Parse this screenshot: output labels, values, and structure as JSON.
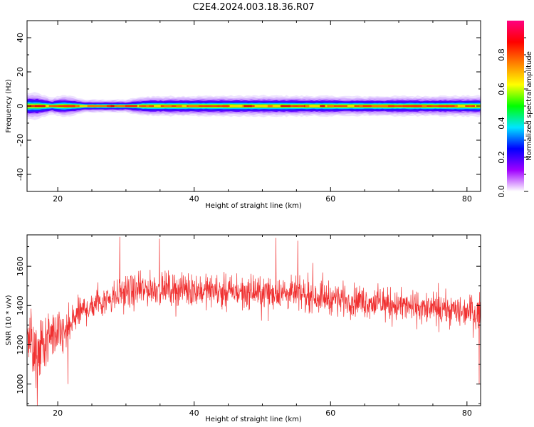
{
  "title": "C2E4.2024.003.18.36.R07",
  "chart_data": [
    {
      "type": "heatmap",
      "name": "spectrogram",
      "xlabel": "Height of straight line (km)",
      "ylabel": "Frequency (Hz)",
      "xlim": [
        15.5,
        82
      ],
      "ylim": [
        -50,
        50
      ],
      "x_ticks": [
        20,
        40,
        60,
        80
      ],
      "y_ticks": [
        -40,
        -20,
        0,
        20,
        40
      ],
      "band": {
        "center_hz": 0,
        "half_width_hz": [
          {
            "x": 15.5,
            "hz": 4.0
          },
          {
            "x": 17,
            "hz": 4.0
          },
          {
            "x": 19,
            "hz": 2.5
          },
          {
            "x": 21,
            "hz": 3.5
          },
          {
            "x": 24,
            "hz": 2.0
          },
          {
            "x": 30,
            "hz": 2.0
          },
          {
            "x": 33,
            "hz": 3.0
          },
          {
            "x": 50,
            "hz": 3.2
          },
          {
            "x": 65,
            "hz": 3.0
          },
          {
            "x": 82,
            "hz": 3.2
          }
        ]
      },
      "colorbar": {
        "label": "Normalized spectral amplitude",
        "range": [
          0,
          1
        ],
        "ticks": [
          0.0,
          0.2,
          0.4,
          0.6,
          0.8
        ],
        "colors": [
          "#ffffff",
          "#a000ff",
          "#0000ff",
          "#00e5ff",
          "#00ff00",
          "#ffff00",
          "#ff8000",
          "#ff0000",
          "#ff0080"
        ]
      }
    },
    {
      "type": "line",
      "name": "snr",
      "xlabel": "Height of straight line (km)",
      "ylabel": "SNR (10 * v/v)",
      "xlim": [
        15.5,
        82
      ],
      "ylim": [
        890,
        1760
      ],
      "x_ticks": [
        20,
        40,
        60,
        80
      ],
      "y_ticks": [
        1000,
        1200,
        1400,
        1600
      ],
      "color": "#f03030",
      "envelope": [
        {
          "x": 15.5,
          "mean": 1300,
          "amp": 180
        },
        {
          "x": 16.5,
          "mean": 1150,
          "amp": 200
        },
        {
          "x": 17.5,
          "mean": 1180,
          "amp": 260
        },
        {
          "x": 19,
          "mean": 1250,
          "amp": 180
        },
        {
          "x": 21,
          "mean": 1250,
          "amp": 170
        },
        {
          "x": 23,
          "mean": 1360,
          "amp": 120
        },
        {
          "x": 26,
          "mean": 1420,
          "amp": 120
        },
        {
          "x": 29,
          "mean": 1460,
          "amp": 130
        },
        {
          "x": 35,
          "mean": 1490,
          "amp": 120
        },
        {
          "x": 45,
          "mean": 1470,
          "amp": 120
        },
        {
          "x": 55,
          "mean": 1460,
          "amp": 120
        },
        {
          "x": 65,
          "mean": 1420,
          "amp": 120
        },
        {
          "x": 75,
          "mean": 1380,
          "amp": 120
        },
        {
          "x": 82,
          "mean": 1370,
          "amp": 120
        }
      ],
      "spikes": [
        {
          "x": 17.0,
          "y": 890
        },
        {
          "x": 16.8,
          "y": 980
        },
        {
          "x": 29.1,
          "y": 1750
        },
        {
          "x": 34.9,
          "y": 1740
        },
        {
          "x": 52.0,
          "y": 1745
        },
        {
          "x": 55.2,
          "y": 1730
        },
        {
          "x": 81.8,
          "y": 1000
        },
        {
          "x": 21.5,
          "y": 1000
        }
      ],
      "samples": 1600
    }
  ]
}
